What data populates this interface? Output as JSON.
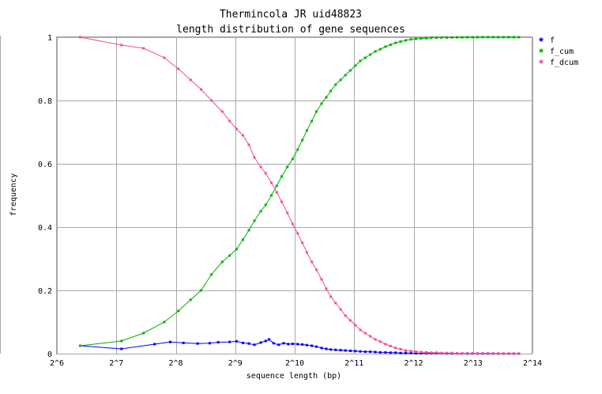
{
  "chart_data": {
    "type": "line",
    "title": "Thermincola JR uid48823",
    "subtitle": "length distribution of gene sequences",
    "xlabel": "sequence length (bp)",
    "ylabel": "frequency",
    "x_scale": "log2",
    "xlim": [
      64,
      16384
    ],
    "ylim": [
      0,
      1
    ],
    "x_ticks": [
      {
        "value": 64,
        "label": "2^6"
      },
      {
        "value": 128,
        "label": "2^7"
      },
      {
        "value": 256,
        "label": "2^8"
      },
      {
        "value": 512,
        "label": "2^9"
      },
      {
        "value": 1024,
        "label": "2^10"
      },
      {
        "value": 2048,
        "label": "2^11"
      },
      {
        "value": 4096,
        "label": "2^12"
      },
      {
        "value": 8192,
        "label": "2^13"
      },
      {
        "value": 16384,
        "label": "2^14"
      }
    ],
    "y_ticks": [
      {
        "value": 0,
        "label": "0"
      },
      {
        "value": 0.2,
        "label": "0.2"
      },
      {
        "value": 0.4,
        "label": "0.4"
      },
      {
        "value": 0.6,
        "label": "0.6"
      },
      {
        "value": 0.8,
        "label": "0.8"
      },
      {
        "value": 1,
        "label": "1"
      }
    ],
    "grid": true,
    "legend_position": "right",
    "series": [
      {
        "name": "f",
        "color": "#0000ff",
        "points": [
          [
            84,
            0.025
          ],
          [
            136,
            0.015
          ],
          [
            200,
            0.03
          ],
          [
            240,
            0.037
          ],
          [
            280,
            0.034
          ],
          [
            330,
            0.032
          ],
          [
            380,
            0.033
          ],
          [
            420,
            0.036
          ],
          [
            480,
            0.037
          ],
          [
            520,
            0.039
          ],
          [
            560,
            0.034
          ],
          [
            600,
            0.032
          ],
          [
            640,
            0.028
          ],
          [
            690,
            0.035
          ],
          [
            730,
            0.04
          ],
          [
            760,
            0.045
          ],
          [
            800,
            0.033
          ],
          [
            850,
            0.028
          ],
          [
            900,
            0.033
          ],
          [
            950,
            0.03
          ],
          [
            1000,
            0.031
          ],
          [
            1060,
            0.03
          ],
          [
            1120,
            0.029
          ],
          [
            1180,
            0.027
          ],
          [
            1250,
            0.025
          ],
          [
            1320,
            0.022
          ],
          [
            1400,
            0.018
          ],
          [
            1480,
            0.015
          ],
          [
            1560,
            0.013
          ],
          [
            1650,
            0.012
          ],
          [
            1750,
            0.011
          ],
          [
            1850,
            0.01
          ],
          [
            1960,
            0.009
          ],
          [
            2080,
            0.008
          ],
          [
            2200,
            0.007
          ],
          [
            2330,
            0.006
          ],
          [
            2470,
            0.006
          ],
          [
            2620,
            0.005
          ],
          [
            2780,
            0.004
          ],
          [
            2950,
            0.004
          ],
          [
            3130,
            0.003
          ],
          [
            3320,
            0.003
          ],
          [
            3520,
            0.002
          ],
          [
            3740,
            0.002
          ],
          [
            3970,
            0.002
          ],
          [
            4210,
            0.001
          ],
          [
            4470,
            0.001
          ],
          [
            4750,
            0.001
          ],
          [
            5040,
            0.001
          ],
          [
            5350,
            0.001
          ],
          [
            5680,
            0.001
          ],
          [
            6030,
            0.0005
          ],
          [
            6400,
            0.0005
          ],
          [
            6800,
            0.0005
          ],
          [
            7220,
            0.0005
          ],
          [
            7670,
            0.0003
          ],
          [
            8140,
            0.0003
          ],
          [
            8640,
            0.0003
          ],
          [
            9180,
            0.0002
          ],
          [
            9750,
            0.0002
          ],
          [
            10350,
            0.0002
          ],
          [
            11000,
            0.0002
          ],
          [
            11680,
            0.0001
          ],
          [
            12400,
            0.0001
          ],
          [
            13170,
            0.0001
          ],
          [
            13990,
            0.0001
          ]
        ]
      },
      {
        "name": "f_cum",
        "color": "#00b000",
        "points": [
          [
            84,
            0.025
          ],
          [
            136,
            0.04
          ],
          [
            176,
            0.065
          ],
          [
            224,
            0.1
          ],
          [
            264,
            0.135
          ],
          [
            304,
            0.17
          ],
          [
            344,
            0.2
          ],
          [
            388,
            0.25
          ],
          [
            440,
            0.29
          ],
          [
            480,
            0.31
          ],
          [
            520,
            0.33
          ],
          [
            560,
            0.36
          ],
          [
            600,
            0.39
          ],
          [
            640,
            0.42
          ],
          [
            690,
            0.45
          ],
          [
            730,
            0.47
          ],
          [
            780,
            0.5
          ],
          [
            830,
            0.53
          ],
          [
            880,
            0.56
          ],
          [
            940,
            0.59
          ],
          [
            1000,
            0.615
          ],
          [
            1060,
            0.645
          ],
          [
            1120,
            0.675
          ],
          [
            1180,
            0.705
          ],
          [
            1250,
            0.735
          ],
          [
            1320,
            0.765
          ],
          [
            1400,
            0.79
          ],
          [
            1480,
            0.81
          ],
          [
            1560,
            0.83
          ],
          [
            1650,
            0.85
          ],
          [
            1750,
            0.865
          ],
          [
            1850,
            0.88
          ],
          [
            1960,
            0.895
          ],
          [
            2080,
            0.91
          ],
          [
            2200,
            0.925
          ],
          [
            2330,
            0.935
          ],
          [
            2470,
            0.945
          ],
          [
            2620,
            0.955
          ],
          [
            2780,
            0.962
          ],
          [
            2950,
            0.97
          ],
          [
            3130,
            0.976
          ],
          [
            3320,
            0.982
          ],
          [
            3520,
            0.986
          ],
          [
            3740,
            0.99
          ],
          [
            3970,
            0.993
          ],
          [
            4210,
            0.995
          ],
          [
            4470,
            0.996
          ],
          [
            4750,
            0.997
          ],
          [
            5040,
            0.998
          ],
          [
            5350,
            0.9985
          ],
          [
            5680,
            0.999
          ],
          [
            6030,
            0.999
          ],
          [
            6400,
            0.9993
          ],
          [
            6800,
            0.9995
          ],
          [
            7220,
            0.9996
          ],
          [
            7670,
            0.9997
          ],
          [
            8140,
            0.9998
          ],
          [
            8640,
            0.9998
          ],
          [
            9180,
            0.9999
          ],
          [
            9750,
            0.9999
          ],
          [
            10350,
            0.9999
          ],
          [
            11000,
            1
          ],
          [
            11680,
            1
          ],
          [
            12400,
            1
          ],
          [
            13170,
            1
          ],
          [
            13990,
            1
          ]
        ]
      },
      {
        "name": "f_dcum",
        "color": "#f0508c",
        "points": [
          [
            84,
            1
          ],
          [
            136,
            0.975
          ],
          [
            176,
            0.965
          ],
          [
            224,
            0.935
          ],
          [
            264,
            0.9
          ],
          [
            304,
            0.865
          ],
          [
            344,
            0.835
          ],
          [
            388,
            0.8
          ],
          [
            440,
            0.765
          ],
          [
            480,
            0.735
          ],
          [
            520,
            0.71
          ],
          [
            560,
            0.69
          ],
          [
            600,
            0.66
          ],
          [
            640,
            0.62
          ],
          [
            690,
            0.59
          ],
          [
            730,
            0.57
          ],
          [
            780,
            0.54
          ],
          [
            830,
            0.51
          ],
          [
            880,
            0.48
          ],
          [
            940,
            0.445
          ],
          [
            1000,
            0.41
          ],
          [
            1060,
            0.38
          ],
          [
            1120,
            0.35
          ],
          [
            1180,
            0.32
          ],
          [
            1250,
            0.29
          ],
          [
            1320,
            0.265
          ],
          [
            1400,
            0.235
          ],
          [
            1480,
            0.205
          ],
          [
            1560,
            0.18
          ],
          [
            1650,
            0.16
          ],
          [
            1750,
            0.14
          ],
          [
            1850,
            0.12
          ],
          [
            1960,
            0.105
          ],
          [
            2080,
            0.09
          ],
          [
            2200,
            0.075
          ],
          [
            2330,
            0.065
          ],
          [
            2470,
            0.055
          ],
          [
            2620,
            0.045
          ],
          [
            2780,
            0.038
          ],
          [
            2950,
            0.03
          ],
          [
            3130,
            0.024
          ],
          [
            3320,
            0.018
          ],
          [
            3520,
            0.014
          ],
          [
            3740,
            0.01
          ],
          [
            3970,
            0.008
          ],
          [
            4210,
            0.006
          ],
          [
            4470,
            0.005
          ],
          [
            4750,
            0.004
          ],
          [
            5040,
            0.003
          ],
          [
            5350,
            0.003
          ],
          [
            5680,
            0.002
          ],
          [
            6030,
            0.002
          ],
          [
            6400,
            0.002
          ],
          [
            6800,
            0.001
          ],
          [
            7220,
            0.001
          ],
          [
            7670,
            0.001
          ],
          [
            8140,
            0.001
          ],
          [
            8640,
            0.001
          ],
          [
            9180,
            0.001
          ],
          [
            9750,
            0.001
          ],
          [
            10350,
            0.0005
          ],
          [
            11000,
            0.0005
          ],
          [
            11680,
            0.0005
          ],
          [
            12400,
            0.0005
          ],
          [
            13170,
            0.0005
          ],
          [
            13990,
            0.0005
          ]
        ]
      }
    ]
  }
}
